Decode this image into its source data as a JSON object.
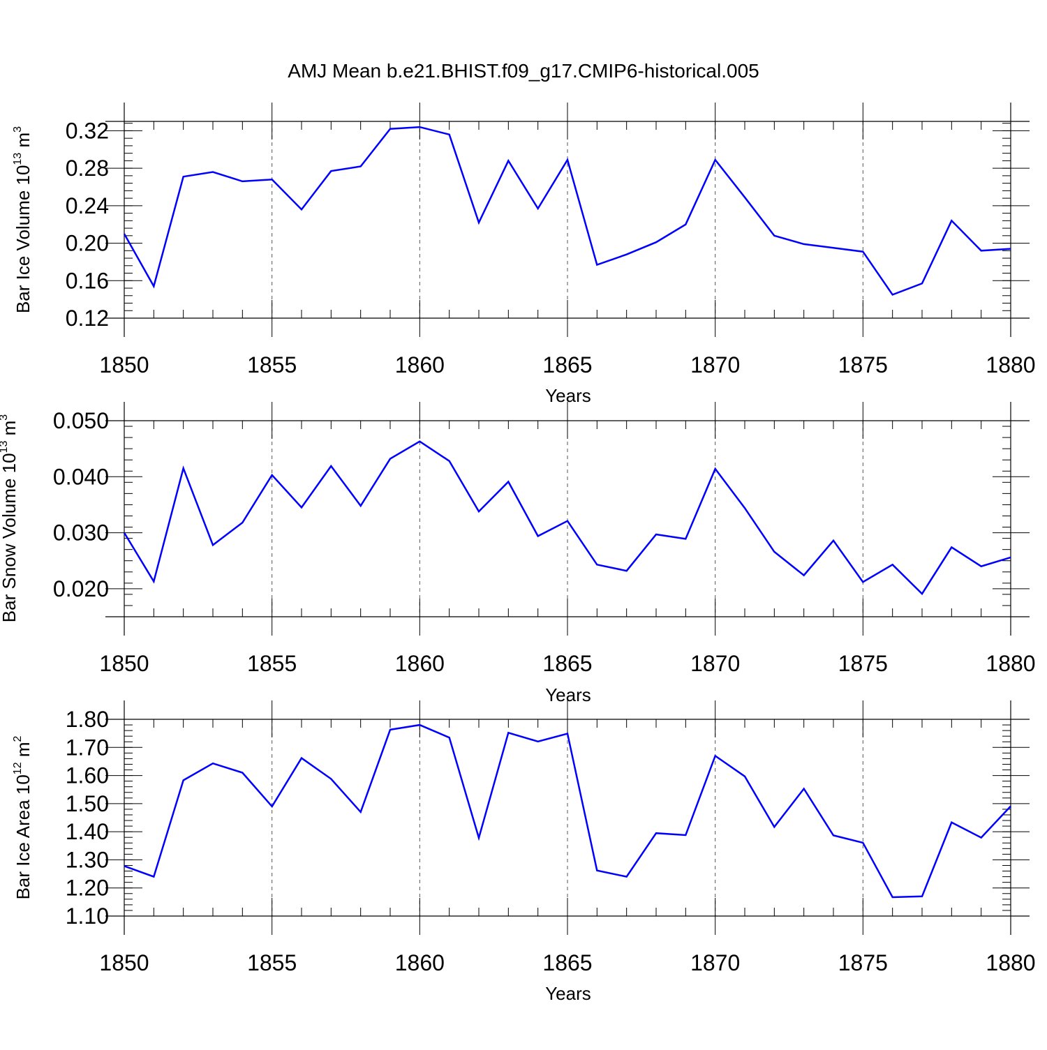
{
  "title": "AMJ Mean b.e21.BHIST.f09_g17.CMIP6-historical.005",
  "colors": {
    "series": "#0000ff",
    "axes": "#000000",
    "grid": "#555555"
  },
  "chart_data": [
    {
      "type": "line",
      "xlabel": "Years",
      "ylabel": {
        "main": "Bar Ice Volume 10",
        "exp": "13",
        "unit": " m",
        "unit_exp": "3"
      },
      "xlim": [
        1850,
        1880
      ],
      "ylim": [
        0.12,
        0.33
      ],
      "x_ticks": [
        "1850",
        "1855",
        "1860",
        "1865",
        "1870",
        "1875",
        "1880"
      ],
      "y_ticks": [
        "0.12",
        "0.16",
        "0.20",
        "0.24",
        "0.28",
        "0.32"
      ],
      "x": [
        1850,
        1851,
        1852,
        1853,
        1854,
        1855,
        1856,
        1857,
        1858,
        1859,
        1860,
        1861,
        1862,
        1863,
        1864,
        1865,
        1866,
        1867,
        1868,
        1869,
        1870,
        1871,
        1872,
        1873,
        1874,
        1875,
        1876,
        1877,
        1878,
        1879,
        1880
      ],
      "values": [
        0.21,
        0.154,
        0.271,
        0.276,
        0.266,
        0.268,
        0.236,
        0.277,
        0.282,
        0.322,
        0.324,
        0.316,
        0.222,
        0.288,
        0.237,
        0.289,
        0.177,
        0.188,
        0.201,
        0.22,
        0.289,
        0.249,
        0.208,
        0.199,
        0.195,
        0.191,
        0.145,
        0.157,
        0.224,
        0.192,
        0.194
      ]
    },
    {
      "type": "line",
      "xlabel": "Years",
      "ylabel": {
        "main": "Bar Snow Volume 10",
        "exp": "13",
        "unit": " m",
        "unit_exp": "3"
      },
      "xlim": [
        1850,
        1880
      ],
      "ylim": [
        0.015,
        0.05
      ],
      "x_ticks": [
        "1850",
        "1855",
        "1860",
        "1865",
        "1870",
        "1875",
        "1880"
      ],
      "y_ticks": [
        "0.020",
        "0.030",
        "0.040",
        "0.050"
      ],
      "x": [
        1850,
        1851,
        1852,
        1853,
        1854,
        1855,
        1856,
        1857,
        1858,
        1859,
        1860,
        1861,
        1862,
        1863,
        1864,
        1865,
        1866,
        1867,
        1868,
        1869,
        1870,
        1871,
        1872,
        1873,
        1874,
        1875,
        1876,
        1877,
        1878,
        1879,
        1880
      ],
      "values": [
        0.03,
        0.0213,
        0.0415,
        0.0278,
        0.0318,
        0.0403,
        0.0345,
        0.0419,
        0.0348,
        0.0432,
        0.0463,
        0.0428,
        0.0338,
        0.0391,
        0.0294,
        0.0321,
        0.0243,
        0.0232,
        0.0297,
        0.0289,
        0.0414,
        0.0344,
        0.0266,
        0.0224,
        0.0286,
        0.0212,
        0.0243,
        0.0191,
        0.0274,
        0.024,
        0.0256
      ]
    },
    {
      "type": "line",
      "xlabel": "Years",
      "ylabel": {
        "main": "Bar Ice Area 10",
        "exp": "12",
        "unit": " m",
        "unit_exp": "2"
      },
      "xlim": [
        1850,
        1880
      ],
      "ylim": [
        1.1,
        1.8
      ],
      "x_ticks": [
        "1850",
        "1855",
        "1860",
        "1865",
        "1870",
        "1875",
        "1880"
      ],
      "y_ticks": [
        "1.10",
        "1.20",
        "1.30",
        "1.40",
        "1.50",
        "1.60",
        "1.70",
        "1.80"
      ],
      "x": [
        1850,
        1851,
        1852,
        1853,
        1854,
        1855,
        1856,
        1857,
        1858,
        1859,
        1860,
        1861,
        1862,
        1863,
        1864,
        1865,
        1866,
        1867,
        1868,
        1869,
        1870,
        1871,
        1872,
        1873,
        1874,
        1875,
        1876,
        1877,
        1878,
        1879,
        1880
      ],
      "values": [
        1.278,
        1.24,
        1.583,
        1.643,
        1.61,
        1.49,
        1.662,
        1.588,
        1.47,
        1.763,
        1.78,
        1.735,
        1.378,
        1.752,
        1.721,
        1.749,
        1.262,
        1.24,
        1.395,
        1.388,
        1.67,
        1.597,
        1.417,
        1.553,
        1.387,
        1.361,
        1.167,
        1.17,
        1.433,
        1.379,
        1.491
      ]
    }
  ]
}
